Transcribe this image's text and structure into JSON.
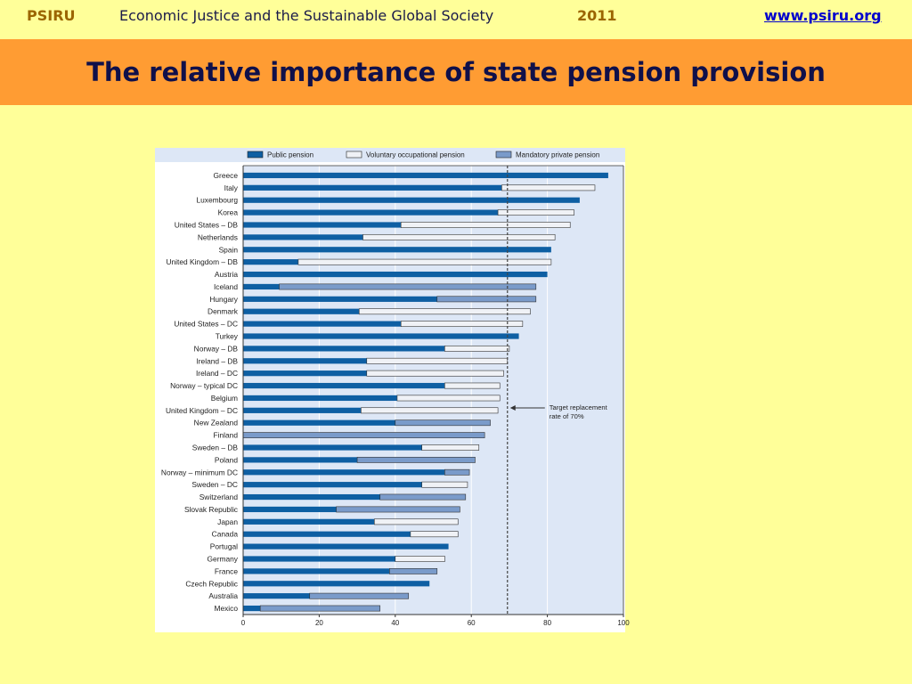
{
  "header": {
    "brand": "PSIRU",
    "subject": "Economic Justice and the Sustainable Global Society",
    "year": "2011",
    "link": "www.psiru.org"
  },
  "slide": {
    "title": "The relative importance of state pension provision"
  },
  "colors": {
    "public": "#0e5fa3",
    "voluntary": "#f0f2f6",
    "mandatory": "#7a9bca",
    "plot_bg": "#dde7f6"
  },
  "chart_data": {
    "type": "bar",
    "orientation": "horizontal",
    "stacked": true,
    "xlim": [
      0,
      100
    ],
    "xticks": [
      0,
      20,
      40,
      60,
      80,
      100
    ],
    "legend_position": "top",
    "grid": true,
    "series_names": [
      "Public pension",
      "Voluntary occupational pension",
      "Mandatory private pension"
    ],
    "categories": [
      "Greece",
      "Italy",
      "Luxembourg",
      "Korea",
      "United States – DB",
      "Netherlands",
      "Spain",
      "United Kingdom – DB",
      "Austria",
      "Iceland",
      "Hungary",
      "Denmark",
      "United States – DC",
      "Turkey",
      "Norway – DB",
      "Ireland – DB",
      "Ireland – DC",
      "Norway – typical DC",
      "Belgium",
      "United Kingdom – DC",
      "New Zealand",
      "Finland",
      "Sweden – DB",
      "Poland",
      "Norway – minimum DC",
      "Sweden – DC",
      "Switzerland",
      "Slovak Republic",
      "Japan",
      "Canada",
      "Portugal",
      "Germany",
      "France",
      "Czech Republic",
      "Australia",
      "Mexico"
    ],
    "series": [
      {
        "name": "Public pension",
        "values": [
          96,
          68,
          88.5,
          67,
          41.5,
          31.5,
          81,
          14.5,
          80,
          9.5,
          51,
          30.5,
          41.5,
          72.5,
          53,
          32.5,
          32.5,
          53,
          40.5,
          31,
          40,
          0,
          47,
          30,
          53,
          47,
          36,
          24.5,
          34.5,
          44,
          54,
          40,
          38.5,
          49,
          17.5,
          4.5
        ]
      },
      {
        "name": "Voluntary occupational pension",
        "values": [
          0,
          24.5,
          0,
          20,
          44.5,
          50.5,
          0,
          66.5,
          0,
          0,
          0,
          45,
          32,
          0,
          17,
          37,
          36,
          14.5,
          27,
          36,
          0,
          0,
          15,
          0,
          0,
          12,
          0,
          0,
          22,
          12.5,
          0,
          13,
          0,
          0,
          0,
          0
        ]
      },
      {
        "name": "Mandatory private pension",
        "values": [
          0,
          0,
          0,
          0,
          0,
          0,
          0,
          0,
          0,
          67.5,
          26,
          0,
          0,
          0,
          0,
          0,
          0,
          0,
          0,
          0,
          25,
          63.5,
          0,
          31,
          6.5,
          0,
          22.5,
          32.5,
          0,
          0,
          0,
          0,
          12.5,
          0,
          26,
          31.5
        ]
      }
    ],
    "annotation": {
      "text_lines": [
        "Target replacement",
        "rate of 70%"
      ],
      "x": 69.5
    }
  }
}
